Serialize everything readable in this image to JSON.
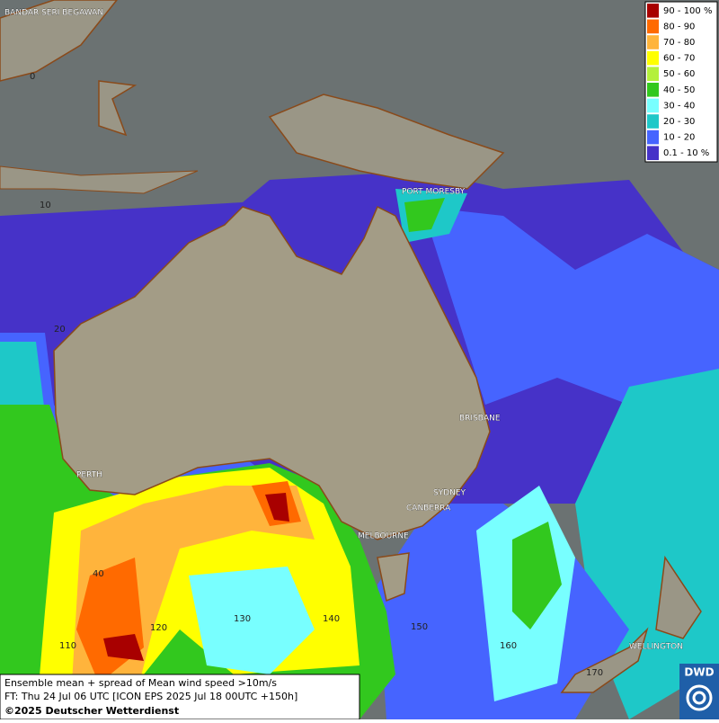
{
  "legend": {
    "items": [
      {
        "label": "90 - 100 %",
        "color": "#a80000"
      },
      {
        "label": "80 - 90",
        "color": "#ff6a00"
      },
      {
        "label": "70 - 80",
        "color": "#ffb43c"
      },
      {
        "label": "60 - 70",
        "color": "#ffff00"
      },
      {
        "label": "50 - 60",
        "color": "#b4f03c"
      },
      {
        "label": "40 - 50",
        "color": "#32c81e"
      },
      {
        "label": "30 - 40",
        "color": "#78ffff"
      },
      {
        "label": "20 - 30",
        "color": "#1ec8c8"
      },
      {
        "label": "10 - 20",
        "color": "#4664ff"
      },
      {
        "label": "0.1 - 10 %",
        "color": "#4632c8"
      }
    ]
  },
  "places": [
    "BANDAR SERI BEGAWAN",
    "PORT MORESBY",
    "BRISBANE",
    "PERTH",
    "SYDNEY",
    "CANBERRA",
    "MELBOURNE",
    "WELLINGTON"
  ],
  "grid_labels": [
    "0",
    "10",
    "20",
    "40",
    "110",
    "120",
    "130",
    "140",
    "150",
    "160",
    "170"
  ],
  "caption": {
    "line1": "Ensemble mean + spread of Mean wind speed >10m/s",
    "line2": "FT: Thu 24 Jul 06 UTC [ICON EPS 2025 Jul 18 00UTC +150h]",
    "line3": "©2025 Deutscher Wetterdienst"
  },
  "logo": "DWD"
}
